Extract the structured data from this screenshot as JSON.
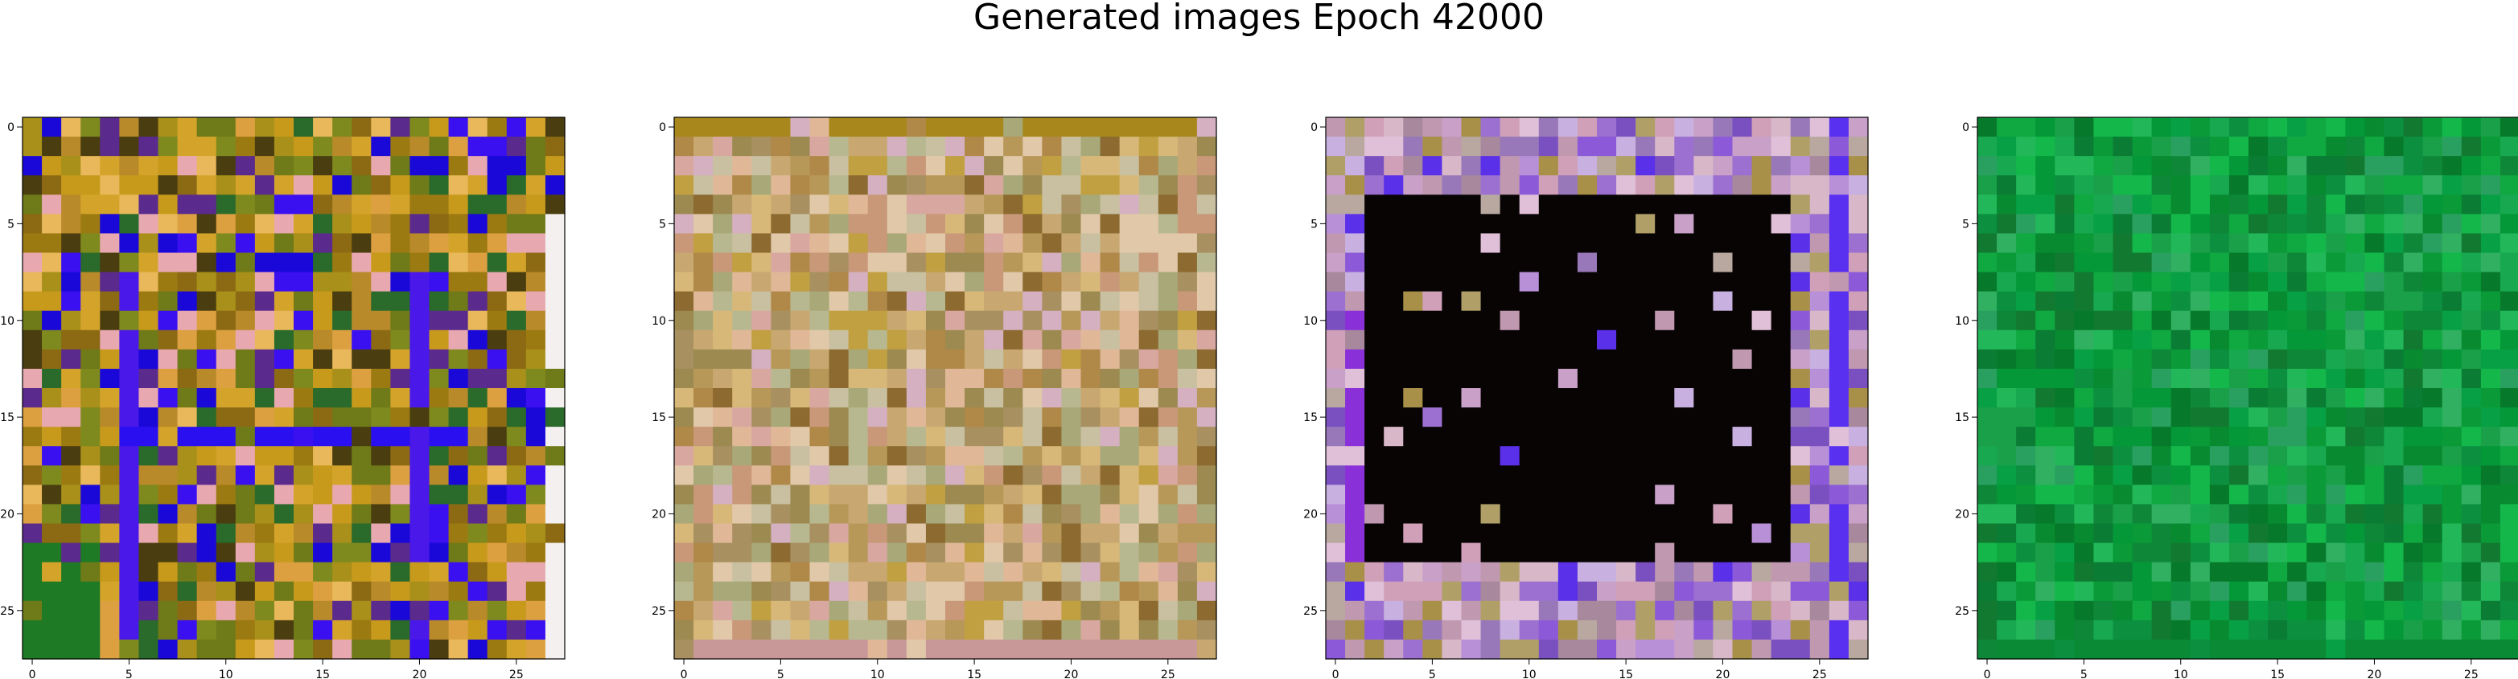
{
  "figure": {
    "title": "Generated images Epoch 42000"
  },
  "chart_data": [
    {
      "type": "heatmap",
      "title": "",
      "xlabel": "",
      "ylabel": "",
      "grid_size": 28,
      "x_ticks": [
        0,
        5,
        10,
        15,
        20,
        25
      ],
      "y_ticks": [
        0,
        5,
        10,
        15,
        20,
        25
      ],
      "xlim": [
        -0.5,
        27.5
      ],
      "ylim": [
        27.5,
        -0.5
      ],
      "grid": false,
      "palette": [
        "#9c7a12",
        "#c89a1c",
        "#d4a42a",
        "#a8901a",
        "#7f8a1e",
        "#b88a2a",
        "#dca040",
        "#e8b85a",
        "#6f7a18",
        "#8c6a14",
        "#4a3e10",
        "#5a2a8c",
        "#3a10f0",
        "#1a08d8",
        "#2a6a2a",
        "#e8a8b0"
      ],
      "features": [
        {
          "shape": "column",
          "x": 5,
          "y": [
            8,
            27
          ],
          "color": "#4a18e8"
        },
        {
          "shape": "column",
          "x": 20,
          "y": [
            8,
            26
          ],
          "color": "#4a18e8"
        },
        {
          "shape": "row",
          "y": 16,
          "x": [
            5,
            22
          ],
          "color": "#2a10f0"
        },
        {
          "shape": "column",
          "x": 27,
          "y": [
            4,
            27
          ],
          "color": "#f4f0f0"
        },
        {
          "shape": "corner",
          "x": [
            0,
            3
          ],
          "y": [
            22,
            27
          ],
          "color": "#1e7a24"
        }
      ],
      "seed": 17
    },
    {
      "type": "heatmap",
      "title": "",
      "xlabel": "",
      "ylabel": "",
      "grid_size": 28,
      "x_ticks": [
        0,
        5,
        10,
        15,
        20,
        25
      ],
      "y_ticks": [
        0,
        5,
        10,
        15,
        20,
        25
      ],
      "xlim": [
        -0.5,
        27.5
      ],
      "ylim": [
        27.5,
        -0.5
      ],
      "grid": false,
      "palette": [
        "#c8a870",
        "#d8b878",
        "#b89858",
        "#e0b898",
        "#a89060",
        "#c0a040",
        "#d8a8a0",
        "#b8b890",
        "#9c8a50",
        "#e0c8a8",
        "#c89878",
        "#8c6a30",
        "#a8a878",
        "#d4b0c0",
        "#c8c0a0",
        "#b08848"
      ],
      "features": [
        {
          "shape": "row",
          "y": 0,
          "x": [
            0,
            27
          ],
          "color": "#a8881c"
        },
        {
          "shape": "row",
          "y": 27,
          "x": [
            0,
            27
          ],
          "color": "#c89898"
        }
      ],
      "seed": 29
    },
    {
      "type": "heatmap",
      "title": "",
      "xlabel": "",
      "ylabel": "",
      "grid_size": 28,
      "x_ticks": [
        0,
        5,
        10,
        15,
        20,
        25
      ],
      "y_ticks": [
        0,
        5,
        10,
        15,
        20,
        25
      ],
      "xlim": [
        -0.5,
        27.5
      ],
      "ylim": [
        27.5,
        -0.5
      ],
      "grid": false,
      "palette": [
        "#c8a0c8",
        "#b890d8",
        "#d8b8c8",
        "#a89048",
        "#c098b0",
        "#9c70d0",
        "#e0c0d8",
        "#b8a8a0",
        "#8c5ad8",
        "#7a50c0",
        "#c8b0e0",
        "#a8889c",
        "#5a30e8",
        "#9878b8",
        "#d0a0b8",
        "#b0a068"
      ],
      "features": [
        {
          "shape": "rect",
          "x": [
            2,
            23
          ],
          "y": [
            4,
            22
          ],
          "color": "#080404"
        },
        {
          "shape": "column",
          "x": 26,
          "y": [
            0,
            27
          ],
          "color": "#5a30f0"
        },
        {
          "shape": "column",
          "x": 1,
          "y": [
            10,
            22
          ],
          "color": "#8a30d8"
        }
      ],
      "seed": 41
    },
    {
      "type": "heatmap",
      "title": "",
      "xlabel": "",
      "ylabel": "",
      "grid_size": 28,
      "x_ticks": [
        0,
        5,
        10,
        15,
        20,
        25
      ],
      "y_ticks": [
        0,
        5,
        10,
        15,
        20,
        25
      ],
      "xlim": [
        -0.5,
        27.5
      ],
      "ylim": [
        27.5,
        -0.5
      ],
      "grid": false,
      "palette": [
        "#0a9a38",
        "#10a840",
        "#088a30",
        "#14b84a",
        "#067a2a",
        "#0c9040",
        "#18a850",
        "#22b85a",
        "#0a7c34",
        "#2aa060",
        "#049838",
        "#1aa048",
        "#0e8838",
        "#08a044",
        "#127a30",
        "#30b060"
      ],
      "features": [
        {
          "shape": "row",
          "y": 27,
          "x": [
            0,
            27
          ],
          "color": "#0a8a34"
        }
      ],
      "seed": 53
    }
  ]
}
